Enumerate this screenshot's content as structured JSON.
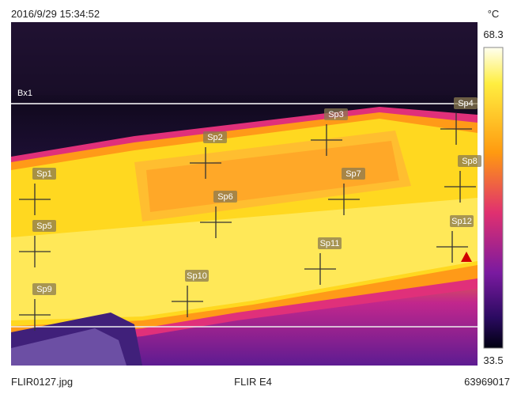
{
  "header": {
    "timestamp": "2016/9/29 15:34:52",
    "unit": "°C"
  },
  "scale": {
    "max": 68.3,
    "min": 33.5
  },
  "box": {
    "label": "Bx1"
  },
  "spots": [
    "Sp1",
    "Sp2",
    "Sp3",
    "Sp4",
    "Sp5",
    "Sp6",
    "Sp7",
    "Sp8",
    "Sp9",
    "Sp10",
    "Sp11",
    "Sp12"
  ],
  "footer": {
    "file": "FLIR0127.jpg",
    "camera": "FLIR E4",
    "serial": "63969017"
  }
}
